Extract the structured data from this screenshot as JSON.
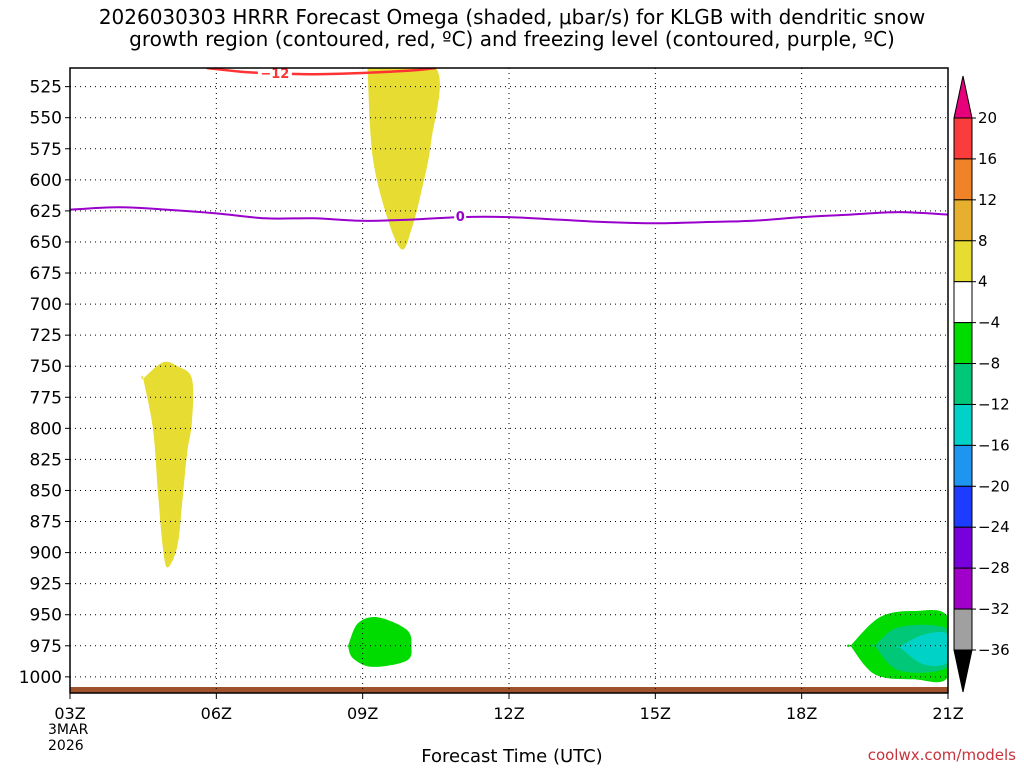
{
  "title_line1": "2026030303 HRRR Forecast Omega (shaded, μbar/s) for KLGB with dendritic snow",
  "title_line2": "growth region (contoured, red, ºC) and freezing level (contoured, purple, ºC)",
  "xlabel": "Forecast Time (UTC)",
  "credit": "coolwx.com/models",
  "date_line1": "3MAR",
  "date_line2": "2026",
  "chart_data": {
    "type": "heatmap",
    "x_ticks": [
      "03Z",
      "06Z",
      "09Z",
      "12Z",
      "15Z",
      "18Z",
      "21Z"
    ],
    "x_tick_hours": [
      3,
      6,
      9,
      12,
      15,
      18,
      21
    ],
    "xlim": [
      3,
      21
    ],
    "y_ticks": [
      525,
      550,
      575,
      600,
      625,
      650,
      675,
      700,
      725,
      750,
      775,
      800,
      825,
      850,
      875,
      900,
      925,
      950,
      975,
      1000
    ],
    "ylim": [
      510,
      1013
    ],
    "grid": true,
    "colorbar": {
      "labels": [
        "20",
        "16",
        "12",
        "8",
        "4",
        "−4",
        "−8",
        "−12",
        "−16",
        "−20",
        "−24",
        "−28",
        "−32",
        "−36"
      ],
      "colors": [
        "#fa3c3c",
        "#f08228",
        "#e6af2d",
        "#e6dc32",
        "#ffffff",
        "#00dc00",
        "#00c878",
        "#00d2c8",
        "#1e96f0",
        "#1e3cff",
        "#7800dc",
        "#a000c8",
        "#a0a0a0"
      ],
      "top_arrow_color": "#e6007a",
      "bottom_arrow_color": "#000000"
    },
    "freezing_level": {
      "color": "#9900cc",
      "label": "0",
      "x": [
        3,
        4,
        5,
        6,
        7,
        8,
        9,
        10,
        11,
        12,
        13,
        14,
        15,
        16,
        17,
        18,
        19,
        20,
        21
      ],
      "y": [
        624,
        622,
        624,
        627,
        631,
        631,
        633,
        632,
        630,
        630,
        632,
        634,
        635,
        634,
        633,
        630,
        628,
        626,
        628
      ]
    },
    "dendritic_contour": {
      "color": "#ff3333",
      "label": "−12",
      "x": [
        5.8,
        6.5,
        7,
        8,
        9,
        10,
        10.5
      ],
      "y": [
        510,
        513,
        514,
        515,
        514,
        512,
        510
      ]
    },
    "omega_regions": [
      {
        "name": "Ascent 5Z",
        "color": "#e6dc32",
        "x": [
          4.5,
          4.9,
          5.2,
          5.5,
          5.5,
          5.4,
          5.3,
          5.2,
          5.0,
          4.9,
          4.8,
          4.7,
          4.5
        ],
        "y": [
          760,
          747,
          750,
          760,
          795,
          820,
          860,
          895,
          912,
          895,
          850,
          800,
          760
        ]
      },
      {
        "name": "Ascent 10Z",
        "color": "#e6dc32",
        "x": [
          9.1,
          10.5,
          10.4,
          10.2,
          10.0,
          9.8,
          9.5,
          9.2,
          9.1
        ],
        "y": [
          510,
          510,
          570,
          610,
          640,
          656,
          630,
          580,
          510
        ]
      },
      {
        "name": "Descent 9Z",
        "color": "#00dc00",
        "x": [
          8.7,
          8.9,
          9.3,
          9.9,
          10.0,
          9.9,
          9.2,
          8.8,
          8.7
        ],
        "y": [
          975,
          957,
          952,
          962,
          975,
          987,
          992,
          985,
          975
        ]
      },
      {
        "name": "Descent 20Z",
        "color": "#00dc00",
        "x": [
          19.0,
          19.6,
          20.3,
          21.0,
          21.0,
          20.3,
          19.5,
          19.0
        ],
        "y": [
          975,
          952,
          947,
          952,
          1000,
          1002,
          998,
          975
        ]
      },
      {
        "name": "Descent 20Z core",
        "color": "#00c878",
        "x": [
          19.5,
          20.0,
          21.0,
          21.0,
          20.0,
          19.5
        ],
        "y": [
          975,
          960,
          962,
          992,
          995,
          975
        ]
      },
      {
        "name": "Descent 20Z center",
        "color": "#00d2c8",
        "x": [
          20.0,
          20.5,
          21.0,
          21.0,
          20.5,
          20.0
        ],
        "y": [
          976,
          966,
          966,
          988,
          990,
          976
        ]
      }
    ],
    "ground_color": "#a0522d"
  }
}
